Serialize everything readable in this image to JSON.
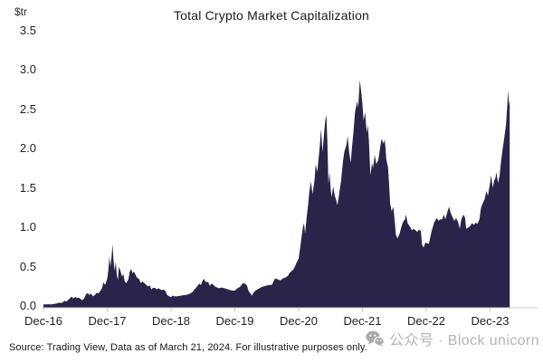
{
  "chart_data": {
    "type": "area",
    "title": "Total Crypto Market Capitalization",
    "y_unit": "$tr",
    "ylim": [
      0,
      3.5
    ],
    "y_ticks": [
      "3.5",
      "3.0",
      "2.5",
      "2.0",
      "1.5",
      "1.0",
      "0.5",
      "0.0"
    ],
    "x_ticks": [
      "Dec-16",
      "Dec-17",
      "Dec-18",
      "Dec-19",
      "Dec-20",
      "Dec-21",
      "Dec-22",
      "Dec-23"
    ],
    "grid": "off",
    "legend": "none",
    "colors": {
      "area_fill": "#2b2349",
      "axis_line": "#cccccc",
      "title_text": "#1b1b1b",
      "watermark_text": "#b5b5b5"
    },
    "series": [
      {
        "name": "Total crypto market capitalization ($tr)",
        "x_unit": "months_after_Dec-16",
        "points": [
          [
            0,
            0.018
          ],
          [
            0.5,
            0.02
          ],
          [
            1,
            0.022
          ],
          [
            1.5,
            0.02
          ],
          [
            2,
            0.026
          ],
          [
            2.5,
            0.032
          ],
          [
            3,
            0.042
          ],
          [
            3.3,
            0.036
          ],
          [
            3.7,
            0.05
          ],
          [
            4,
            0.066
          ],
          [
            4.3,
            0.056
          ],
          [
            4.7,
            0.08
          ],
          [
            5,
            0.1
          ],
          [
            5.3,
            0.12
          ],
          [
            5.6,
            0.095
          ],
          [
            6,
            0.115
          ],
          [
            6.3,
            0.1
          ],
          [
            6.6,
            0.108
          ],
          [
            7,
            0.088
          ],
          [
            7.3,
            0.072
          ],
          [
            7.7,
            0.1
          ],
          [
            8,
            0.148
          ],
          [
            8.3,
            0.165
          ],
          [
            8.6,
            0.14
          ],
          [
            9,
            0.155
          ],
          [
            9.3,
            0.122
          ],
          [
            9.7,
            0.14
          ],
          [
            10,
            0.168
          ],
          [
            10.3,
            0.158
          ],
          [
            10.7,
            0.19
          ],
          [
            11,
            0.225
          ],
          [
            11.3,
            0.3
          ],
          [
            11.6,
            0.265
          ],
          [
            12,
            0.35
          ],
          [
            12.2,
            0.45
          ],
          [
            12.4,
            0.63
          ],
          [
            12.6,
            0.5
          ],
          [
            12.8,
            0.62
          ],
          [
            13,
            0.78
          ],
          [
            13.2,
            0.56
          ],
          [
            13.4,
            0.45
          ],
          [
            13.6,
            0.56
          ],
          [
            13.8,
            0.39
          ],
          [
            14,
            0.33
          ],
          [
            14.2,
            0.5
          ],
          [
            14.5,
            0.44
          ],
          [
            14.8,
            0.37
          ],
          [
            15,
            0.41
          ],
          [
            15.3,
            0.31
          ],
          [
            15.6,
            0.29
          ],
          [
            16,
            0.34
          ],
          [
            16.2,
            0.43
          ],
          [
            16.5,
            0.47
          ],
          [
            16.8,
            0.41
          ],
          [
            17,
            0.44
          ],
          [
            17.3,
            0.4
          ],
          [
            17.6,
            0.36
          ],
          [
            18,
            0.34
          ],
          [
            18.3,
            0.29
          ],
          [
            18.6,
            0.31
          ],
          [
            19,
            0.29
          ],
          [
            19.3,
            0.27
          ],
          [
            19.6,
            0.25
          ],
          [
            20,
            0.26
          ],
          [
            20.3,
            0.21
          ],
          [
            20.6,
            0.23
          ],
          [
            21,
            0.23
          ],
          [
            21.3,
            0.21
          ],
          [
            21.6,
            0.225
          ],
          [
            22,
            0.21
          ],
          [
            22.3,
            0.2
          ],
          [
            22.6,
            0.21
          ],
          [
            23,
            0.185
          ],
          [
            23.2,
            0.145
          ],
          [
            23.5,
            0.128
          ],
          [
            24,
            0.112
          ],
          [
            24.3,
            0.132
          ],
          [
            24.6,
            0.122
          ],
          [
            25,
            0.122
          ],
          [
            25.5,
            0.127
          ],
          [
            26,
            0.133
          ],
          [
            26.5,
            0.138
          ],
          [
            27,
            0.143
          ],
          [
            27.5,
            0.155
          ],
          [
            28,
            0.175
          ],
          [
            28.5,
            0.215
          ],
          [
            29,
            0.255
          ],
          [
            29.3,
            0.285
          ],
          [
            29.6,
            0.265
          ],
          [
            30,
            0.33
          ],
          [
            30.2,
            0.345
          ],
          [
            30.5,
            0.305
          ],
          [
            31,
            0.305
          ],
          [
            31.3,
            0.255
          ],
          [
            31.6,
            0.285
          ],
          [
            32,
            0.265
          ],
          [
            32.3,
            0.245
          ],
          [
            33,
            0.225
          ],
          [
            33.5,
            0.235
          ],
          [
            34,
            0.225
          ],
          [
            34.5,
            0.215
          ],
          [
            35,
            0.205
          ],
          [
            35.5,
            0.195
          ],
          [
            36,
            0.195
          ],
          [
            36.5,
            0.225
          ],
          [
            37,
            0.245
          ],
          [
            37.5,
            0.29
          ],
          [
            38,
            0.28
          ],
          [
            38.3,
            0.255
          ],
          [
            38.6,
            0.185
          ],
          [
            39,
            0.155
          ],
          [
            39.2,
            0.13
          ],
          [
            39.5,
            0.17
          ],
          [
            39.8,
            0.19
          ],
          [
            40,
            0.2
          ],
          [
            40.5,
            0.22
          ],
          [
            41,
            0.24
          ],
          [
            41.5,
            0.25
          ],
          [
            42,
            0.26
          ],
          [
            42.5,
            0.265
          ],
          [
            43,
            0.27
          ],
          [
            43.3,
            0.32
          ],
          [
            43.6,
            0.35
          ],
          [
            44,
            0.34
          ],
          [
            44.3,
            0.33
          ],
          [
            44.6,
            0.325
          ],
          [
            45,
            0.35
          ],
          [
            45.5,
            0.36
          ],
          [
            46,
            0.385
          ],
          [
            46.3,
            0.42
          ],
          [
            46.6,
            0.44
          ],
          [
            47,
            0.46
          ],
          [
            47.3,
            0.5
          ],
          [
            47.6,
            0.55
          ],
          [
            48,
            0.6
          ],
          [
            48.3,
            0.75
          ],
          [
            48.6,
            0.9
          ],
          [
            48.8,
            1.0
          ],
          [
            49,
            1.05
          ],
          [
            49.2,
            0.92
          ],
          [
            49.5,
            1.12
          ],
          [
            49.8,
            1.3
          ],
          [
            50,
            1.45
          ],
          [
            50.3,
            1.58
          ],
          [
            50.6,
            1.42
          ],
          [
            51,
            1.6
          ],
          [
            51.2,
            1.8
          ],
          [
            51.5,
            1.7
          ],
          [
            51.8,
            1.9
          ],
          [
            52,
            2.05
          ],
          [
            52.2,
            2.25
          ],
          [
            52.5,
            1.95
          ],
          [
            52.8,
            2.2
          ],
          [
            53,
            2.35
          ],
          [
            53.2,
            2.43
          ],
          [
            53.4,
            2.1
          ],
          [
            53.6,
            1.55
          ],
          [
            53.8,
            1.7
          ],
          [
            54,
            1.5
          ],
          [
            54.2,
            1.38
          ],
          [
            54.5,
            1.52
          ],
          [
            54.8,
            1.4
          ],
          [
            55,
            1.36
          ],
          [
            55.3,
            1.28
          ],
          [
            55.6,
            1.42
          ],
          [
            56,
            1.6
          ],
          [
            56.3,
            1.82
          ],
          [
            56.6,
            1.96
          ],
          [
            57,
            2.05
          ],
          [
            57.2,
            2.16
          ],
          [
            57.5,
            1.95
          ],
          [
            57.8,
            1.82
          ],
          [
            58,
            2.0
          ],
          [
            58.3,
            2.2
          ],
          [
            58.6,
            2.46
          ],
          [
            59,
            2.6
          ],
          [
            59.2,
            2.52
          ],
          [
            59.5,
            2.87
          ],
          [
            59.8,
            2.7
          ],
          [
            60,
            2.56
          ],
          [
            60.2,
            2.35
          ],
          [
            60.5,
            2.46
          ],
          [
            60.8,
            2.2
          ],
          [
            61,
            2.3
          ],
          [
            61.2,
            2.1
          ],
          [
            61.5,
            1.66
          ],
          [
            61.8,
            1.82
          ],
          [
            62,
            1.75
          ],
          [
            62.3,
            1.92
          ],
          [
            62.6,
            1.8
          ],
          [
            63,
            1.86
          ],
          [
            63.3,
            2.0
          ],
          [
            63.6,
            2.12
          ],
          [
            64,
            2.06
          ],
          [
            64.2,
            2.12
          ],
          [
            64.5,
            1.86
          ],
          [
            64.8,
            1.76
          ],
          [
            65,
            1.56
          ],
          [
            65.2,
            1.3
          ],
          [
            65.5,
            1.2
          ],
          [
            65.8,
            1.26
          ],
          [
            66,
            1.12
          ],
          [
            66.3,
            0.9
          ],
          [
            66.6,
            0.86
          ],
          [
            67,
            0.92
          ],
          [
            67.3,
            1.0
          ],
          [
            67.6,
            1.06
          ],
          [
            68,
            1.1
          ],
          [
            68.2,
            1.16
          ],
          [
            68.5,
            1.05
          ],
          [
            69,
            1.0
          ],
          [
            69.3,
            0.96
          ],
          [
            69.6,
            0.98
          ],
          [
            70,
            0.96
          ],
          [
            70.3,
            0.94
          ],
          [
            70.6,
            0.97
          ],
          [
            71,
            0.95
          ],
          [
            71.2,
            0.78
          ],
          [
            71.5,
            0.74
          ],
          [
            71.8,
            0.8
          ],
          [
            72,
            0.8
          ],
          [
            72.5,
            0.79
          ],
          [
            73,
            0.95
          ],
          [
            73.5,
            1.06
          ],
          [
            74,
            1.12
          ],
          [
            74.3,
            1.08
          ],
          [
            74.6,
            1.1
          ],
          [
            75,
            1.1
          ],
          [
            75.3,
            1.16
          ],
          [
            75.6,
            1.1
          ],
          [
            76,
            1.2
          ],
          [
            76.3,
            1.26
          ],
          [
            76.6,
            1.18
          ],
          [
            77,
            1.12
          ],
          [
            77.3,
            1.08
          ],
          [
            77.6,
            1.12
          ],
          [
            78,
            1.06
          ],
          [
            78.3,
            0.98
          ],
          [
            78.6,
            1.1
          ],
          [
            79,
            1.16
          ],
          [
            79.3,
            1.12
          ],
          [
            79.5,
            0.98
          ],
          [
            80,
            1.0
          ],
          [
            80.3,
            1.02
          ],
          [
            80.6,
            1.05
          ],
          [
            81,
            1.03
          ],
          [
            81.3,
            1.06
          ],
          [
            81.6,
            1.04
          ],
          [
            82,
            1.1
          ],
          [
            82.3,
            1.25
          ],
          [
            82.6,
            1.3
          ],
          [
            83,
            1.36
          ],
          [
            83.3,
            1.46
          ],
          [
            83.6,
            1.4
          ],
          [
            84,
            1.56
          ],
          [
            84.2,
            1.66
          ],
          [
            84.5,
            1.5
          ],
          [
            84.8,
            1.6
          ],
          [
            85,
            1.62
          ],
          [
            85.2,
            1.7
          ],
          [
            85.5,
            1.56
          ],
          [
            85.8,
            1.66
          ],
          [
            86,
            1.8
          ],
          [
            86.3,
            1.96
          ],
          [
            86.6,
            2.1
          ],
          [
            87,
            2.3
          ],
          [
            87.2,
            2.5
          ],
          [
            87.4,
            2.74
          ],
          [
            87.55,
            2.55
          ],
          [
            87.7,
            2.62
          ]
        ]
      }
    ]
  },
  "footer": {
    "source": "Source: Trading View, Data as of March 21, 2024. For illustrative purposes only.",
    "watermark": "公众号 · Block unicorn",
    "watermark_icon": "wechat-icon"
  }
}
